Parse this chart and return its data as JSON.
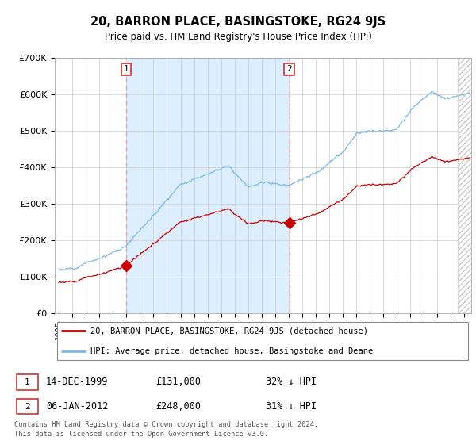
{
  "title": "20, BARRON PLACE, BASINGSTOKE, RG24 9JS",
  "subtitle": "Price paid vs. HM Land Registry's House Price Index (HPI)",
  "hpi_label": "HPI: Average price, detached house, Basingstoke and Deane",
  "house_label": "20, BARRON PLACE, BASINGSTOKE, RG24 9JS (detached house)",
  "footer_line1": "Contains HM Land Registry data © Crown copyright and database right 2024.",
  "footer_line2": "This data is licensed under the Open Government Licence v3.0.",
  "sale1_date": "14-DEC-1999",
  "sale1_price": "£131,000",
  "sale1_hpi": "32% ↓ HPI",
  "sale2_date": "06-JAN-2012",
  "sale2_price": "£248,000",
  "sale2_hpi": "31% ↓ HPI",
  "hpi_color": "#7ab8e8",
  "house_color": "#cc0000",
  "shade_color": "#ddeeff",
  "vline_color": "#e8a0a0",
  "ylim": [
    0,
    700000
  ],
  "yticks": [
    0,
    100000,
    200000,
    300000,
    400000,
    500000,
    600000,
    700000
  ],
  "sale1_year": 2000.0,
  "sale1_value": 131000,
  "sale2_year": 2012.04,
  "sale2_value": 248000,
  "xmin": 1995.0,
  "xmax": 2025.5,
  "bg_color": "#ffffff",
  "grid_color": "#cccccc"
}
